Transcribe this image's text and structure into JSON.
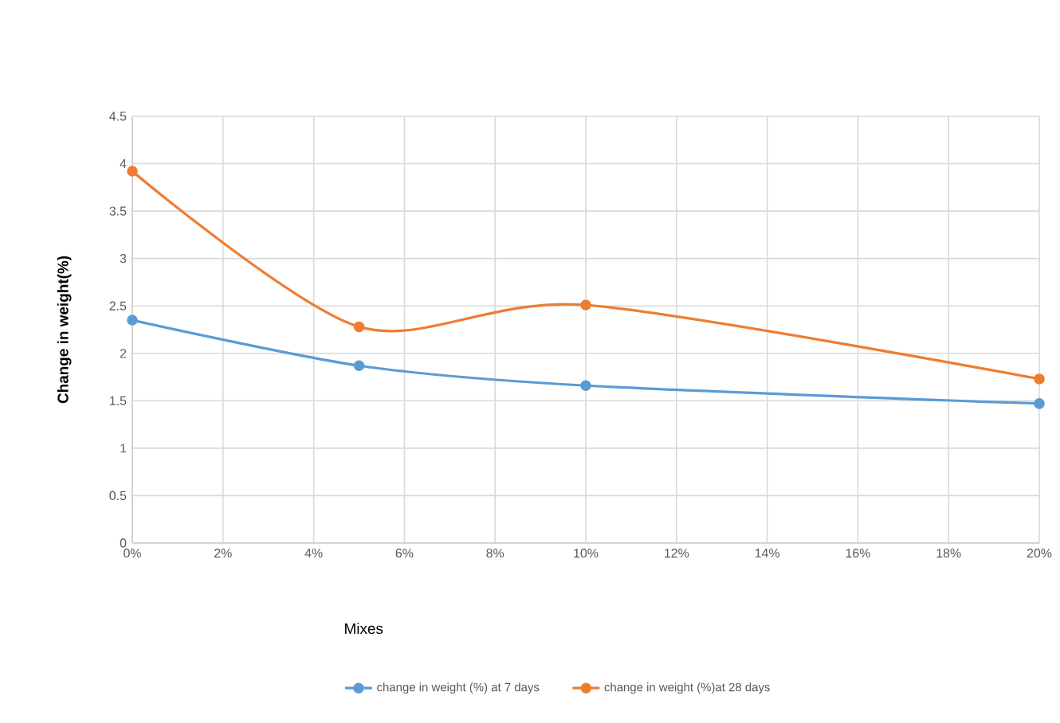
{
  "chart_data": {
    "type": "line",
    "xlabel": "Mixes",
    "ylabel": "Change in weight(%)",
    "x": [
      0,
      5,
      10,
      20
    ],
    "series": [
      {
        "name": "change in weight (%) at 7 days",
        "color": "#5b9bd5",
        "values": [
          2.35,
          1.87,
          1.66,
          1.47
        ]
      },
      {
        "name": "change in weight (%)at 28 days",
        "color": "#ed7d31",
        "values": [
          3.92,
          2.28,
          2.51,
          1.73
        ]
      }
    ],
    "xlim": [
      0,
      20
    ],
    "xticks": [
      {
        "value": 0,
        "label": "0%"
      },
      {
        "value": 2,
        "label": "2%"
      },
      {
        "value": 4,
        "label": "4%"
      },
      {
        "value": 6,
        "label": "6%"
      },
      {
        "value": 8,
        "label": "8%"
      },
      {
        "value": 10,
        "label": "10%"
      },
      {
        "value": 12,
        "label": "12%"
      },
      {
        "value": 14,
        "label": "14%"
      },
      {
        "value": 16,
        "label": "16%"
      },
      {
        "value": 18,
        "label": "18%"
      },
      {
        "value": 20,
        "label": "20%"
      }
    ],
    "ylim": [
      0,
      4.5
    ],
    "yticks": [
      0,
      0.5,
      1,
      1.5,
      2,
      2.5,
      3,
      3.5,
      4,
      4.5
    ],
    "grid": true,
    "legend": "bottom",
    "marker": "circle",
    "line_style": "solid"
  }
}
